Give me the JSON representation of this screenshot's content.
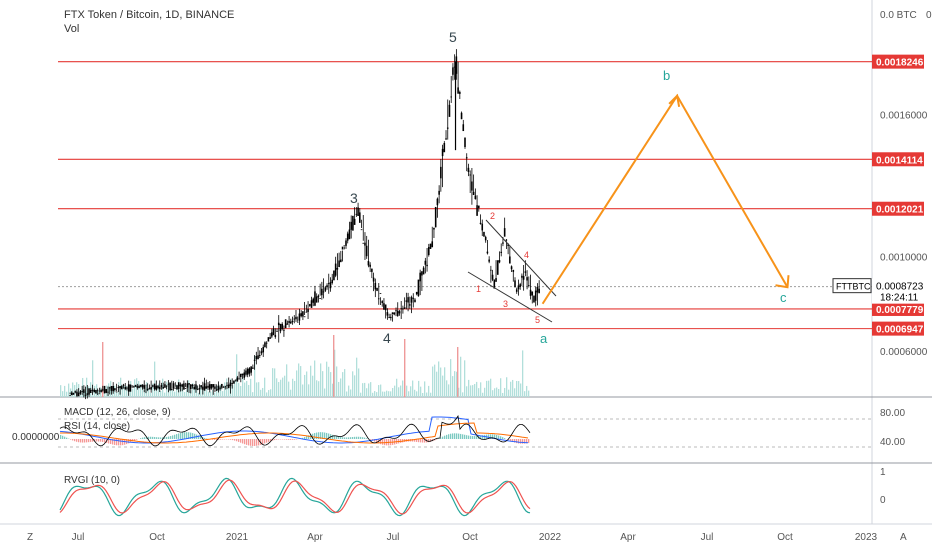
{
  "header": {
    "title": "FTX Token / Bitcoin, 1D, BINANCE",
    "vol": "Vol"
  },
  "axis": {
    "top_label": "0.0 BTC",
    "top_suffix": "0",
    "price_ticks": [
      "0.0016000",
      "0.0010000",
      "0.0006000"
    ],
    "time_labels": [
      "Jul",
      "Oct",
      "2021",
      "Apr",
      "Jul",
      "Oct",
      "2022",
      "Apr",
      "Jul",
      "Oct",
      "2023"
    ],
    "corner_left": "Z",
    "corner_right": "A"
  },
  "level_labels": [
    "0.0018246",
    "0.0014114",
    "0.0012021",
    "0.0007779",
    "0.0006947"
  ],
  "current": {
    "symbol": "FTTBTC",
    "price": "0.0008723",
    "countdown": "18:24:11"
  },
  "waves": {
    "major": [
      "5",
      "3",
      "4"
    ],
    "minor": [
      "2",
      "4",
      "1",
      "3",
      "5"
    ],
    "abc": [
      "b",
      "a",
      "c"
    ]
  },
  "macd_panel": {
    "macd_label": "MACD (12, 26, close, 9)",
    "rsi_label": "RSI (14, close)",
    "zero_label": "0.0000000",
    "ticks": [
      "80.00",
      "40.00"
    ]
  },
  "rvgi_panel": {
    "label": "RVGI (10, 0)",
    "ticks": [
      "1",
      "0"
    ]
  },
  "colors": {
    "level_line": "#e53935",
    "level_label_bg": "#e53935",
    "projection": "#f7931a",
    "abc_text": "#26a69a",
    "wave_text": "#37474f",
    "minor_wave_text": "#e53935",
    "volume": "#b2dfdb",
    "macd": "#2962ff",
    "signal": "#ff6d00",
    "rsi": "#7e57c2",
    "rvgi": "#26a69a",
    "rvgi_signal": "#ef5350",
    "candle": "#000000"
  },
  "chart_data": {
    "type": "line",
    "title": "FTX Token / Bitcoin, 1D, BINANCE",
    "x_axis": [
      "Jul 2020",
      "Oct 2020",
      "2021",
      "Apr 2021",
      "Jul 2021",
      "Oct 2021",
      "2022",
      "Apr 2022",
      "Jul 2022",
      "Oct 2022",
      "2023"
    ],
    "y_axis_ticks": [
      0.0016,
      0.001,
      0.0006
    ],
    "horizontal_levels": [
      0.0018246,
      0.0014114,
      0.0012021,
      0.0007779,
      0.0006947
    ],
    "last_price": 0.0008723,
    "price_path": [
      {
        "x": "2020-06-15",
        "y": 0.00042
      },
      {
        "x": "2020-09-01",
        "y": 0.00045
      },
      {
        "x": "2020-12-15",
        "y": 0.00045
      },
      {
        "x": "2021-01-10",
        "y": 0.00052
      },
      {
        "x": "2021-02-05",
        "y": 0.00068
      },
      {
        "x": "2021-03-10",
        "y": 0.00075
      },
      {
        "x": "2021-04-15",
        "y": 0.0009
      },
      {
        "x": "2021-05-15",
        "y": 0.0012
      },
      {
        "x": "2021-06-01",
        "y": 0.0009
      },
      {
        "x": "2021-06-20",
        "y": 0.00074
      },
      {
        "x": "2021-07-20",
        "y": 0.00082
      },
      {
        "x": "2021-08-10",
        "y": 0.00108
      },
      {
        "x": "2021-09-05",
        "y": 0.00184
      },
      {
        "x": "2021-09-20",
        "y": 0.00135
      },
      {
        "x": "2021-10-05",
        "y": 0.00115
      },
      {
        "x": "2021-10-20",
        "y": 0.00088
      },
      {
        "x": "2021-11-01",
        "y": 0.0011
      },
      {
        "x": "2021-11-15",
        "y": 0.00085
      },
      {
        "x": "2021-11-25",
        "y": 0.00093
      },
      {
        "x": "2021-12-05",
        "y": 0.00082
      },
      {
        "x": "2021-12-12",
        "y": 0.00087
      }
    ],
    "projection_path": [
      {
        "x": "2021-12-15",
        "y": 0.0008
      },
      {
        "x": "2022-05-20",
        "y": 0.00168
      },
      {
        "x": "2022-09-25",
        "y": 0.00087
      }
    ]
  }
}
